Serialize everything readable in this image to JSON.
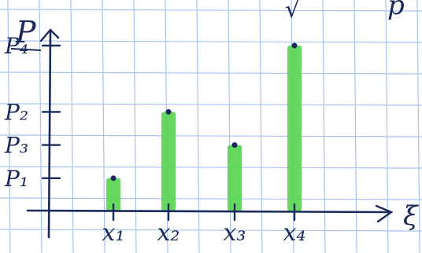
{
  "colors": {
    "paper": "#ffffff",
    "grid": "#a9c4ef",
    "ink": "#1a2a5a",
    "bar": "#56d44e"
  },
  "chart_data": {
    "type": "bar",
    "categories": [
      "x₁",
      "x₂",
      "x₃",
      "x₄"
    ],
    "values": [
      1.0,
      3.0,
      2.0,
      5.0
    ],
    "ylabel": "P",
    "xlabel": "",
    "y_tick_labels": [
      "P₁",
      "P₃",
      "P₂",
      "P₄"
    ],
    "y_tick_values": [
      1.0,
      2.0,
      3.0,
      5.0
    ],
    "ylim": [
      0,
      5.6
    ],
    "grid": true,
    "legend": "none"
  },
  "fragments": {
    "top_center": "√",
    "top_right": "p",
    "right_edge": "ξ"
  }
}
